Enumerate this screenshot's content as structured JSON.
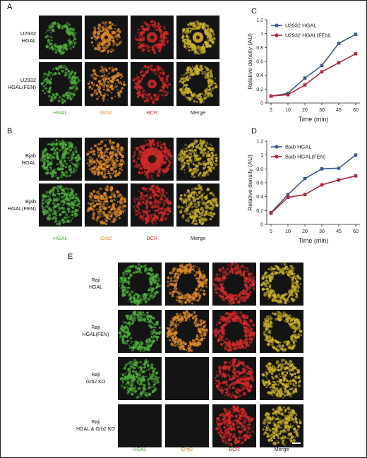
{
  "panel_labels": {
    "A": "A",
    "B": "B",
    "C": "C",
    "D": "D",
    "E": "E"
  },
  "A": {
    "rows": [
      "U2932\nHGAL",
      "U2932\nHGAL(FEN)"
    ],
    "columns": [
      "HGAL",
      "Grb2",
      "BCR",
      "Merge"
    ]
  },
  "B": {
    "rows": [
      "Bjab\nHGAL",
      "Bjab\nHGAL(FEN)"
    ],
    "columns": [
      "HGAL",
      "Grb2",
      "BCR",
      "Merge"
    ]
  },
  "E": {
    "rows": [
      "Raji\nHGAL",
      "Raji\nHGAL(FEN)",
      "Raji\nGrb2 KO",
      "Raji\nHGAL & Grb2 KO"
    ],
    "columns": [
      "HGAL",
      "Grb2",
      "BCR",
      "Merge"
    ]
  },
  "colors": {
    "hgal": "#4fae3b",
    "grb2": "#e08a2a",
    "bcr": "#d42a2a",
    "merge": "#c9b02a",
    "series_blue": "#3b5b8c",
    "series_red": "#b2283c"
  },
  "chart_data": [
    {
      "panel": "C",
      "type": "line",
      "x": [
        "5",
        "10",
        "20",
        "30",
        "45",
        "60"
      ],
      "xlabel": "Time (min)",
      "ylabel": "Relative density (AU)",
      "ylim": [
        0,
        1.2
      ],
      "yticks": [
        "0",
        "0.2",
        "0.4",
        "0.6",
        "0.8",
        "1",
        "1.2"
      ],
      "legend_position": "top-left",
      "series": [
        {
          "name": "U2932 HGAL",
          "color": "#3b5b8c",
          "values": [
            0.1,
            0.14,
            0.36,
            0.54,
            0.86,
            0.99
          ]
        },
        {
          "name": "U2932 HGAL(FEN)",
          "color": "#b2283c",
          "values": [
            0.1,
            0.12,
            0.26,
            0.45,
            0.58,
            0.71
          ]
        }
      ]
    },
    {
      "panel": "D",
      "type": "line",
      "x": [
        "5",
        "10",
        "20",
        "30",
        "45",
        "60"
      ],
      "xlabel": "Time (min)",
      "ylabel": "Relative density (AU)",
      "ylim": [
        0,
        1.2
      ],
      "yticks": [
        "0",
        "0.2",
        "0.4",
        "0.6",
        "0.8",
        "1",
        "1.2"
      ],
      "legend_position": "top-left",
      "series": [
        {
          "name": "Bjab HGAL",
          "color": "#3b5b8c",
          "values": [
            0.17,
            0.43,
            0.66,
            0.8,
            0.81,
            1.0
          ]
        },
        {
          "name": "Bjab HGAL(FEN)",
          "color": "#b2283c",
          "values": [
            0.16,
            0.39,
            0.43,
            0.57,
            0.64,
            0.7
          ]
        }
      ]
    }
  ]
}
